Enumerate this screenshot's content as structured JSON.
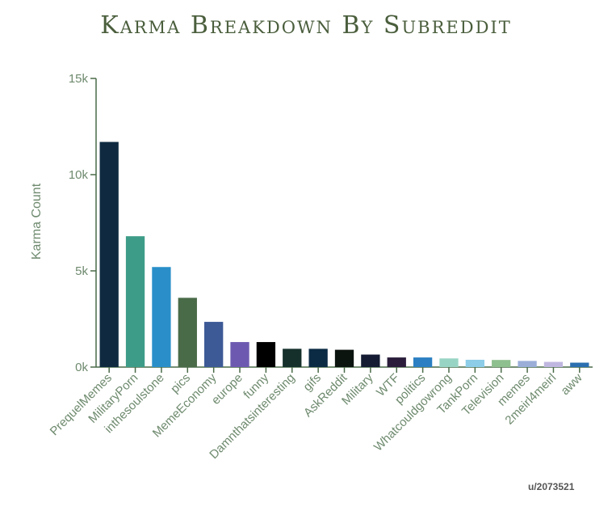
{
  "chart_data": {
    "type": "bar",
    "title": "Karma Breakdown By Subreddit",
    "xlabel": "",
    "ylabel": "Karma Count",
    "ylim": [
      0,
      15000
    ],
    "yticks": [
      0,
      5000,
      10000,
      15000
    ],
    "ytick_labels": [
      "0k",
      "5k",
      "10k",
      "15k"
    ],
    "grid": false,
    "categories": [
      "PrequelMemes",
      "MilitaryPorn",
      "inthesoulstone",
      "pics",
      "MemeEconomy",
      "europe",
      "funny",
      "Damnthatsinteresting",
      "gifs",
      "AskReddit",
      "Military",
      "WTF",
      "politics",
      "Whatcouldgowrong",
      "TankPorn",
      "Television",
      "memes",
      "2meirl4meirl",
      "aww"
    ],
    "values": [
      11700,
      6800,
      5200,
      3600,
      2350,
      1300,
      1300,
      950,
      950,
      900,
      650,
      500,
      500,
      450,
      380,
      370,
      320,
      270,
      230
    ],
    "colors": [
      "#0f2a40",
      "#3d9c88",
      "#2a8fc9",
      "#4a6b48",
      "#3d5a96",
      "#6d5ab0",
      "#000000",
      "#15302a",
      "#0b2a44",
      "#0c1410",
      "#141b33",
      "#2a1c3a",
      "#2b7fc2",
      "#98d4c4",
      "#8dcde8",
      "#8ebf8e",
      "#9aaed8",
      "#c0b7e0",
      "#2b6fb0"
    ]
  },
  "credit": "u/2073521"
}
